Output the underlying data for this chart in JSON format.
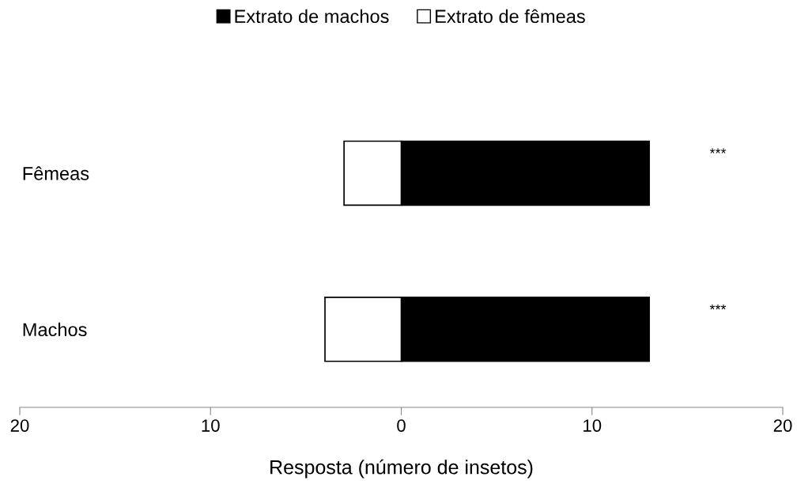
{
  "chart_data": {
    "type": "bar",
    "orientation": "horizontal",
    "stacked": true,
    "categories": [
      "Fêmeas",
      "Machos"
    ],
    "series": [
      {
        "name": "Extrato de machos",
        "color": "#000000",
        "values": [
          13,
          13
        ]
      },
      {
        "name": "Extrato de fêmeas",
        "color": "#ffffff",
        "values": [
          -3,
          -4
        ]
      }
    ],
    "xlabel": "Resposta (número de insetos)",
    "xlim": [
      -20,
      20
    ],
    "xticks": [
      {
        "value": -20,
        "label": "20"
      },
      {
        "value": -10,
        "label": "10"
      },
      0,
      10,
      20
    ],
    "annotations": [
      "***",
      "***"
    ],
    "legend": "top",
    "grid": false
  }
}
